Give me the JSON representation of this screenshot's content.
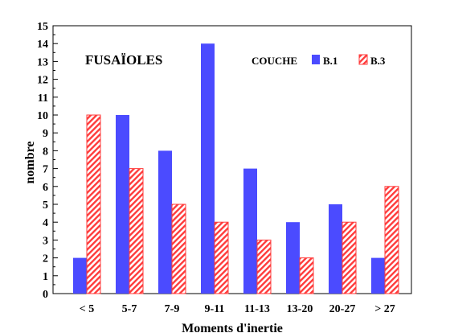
{
  "chart_data": {
    "type": "bar",
    "title": "FUSAÏOLES",
    "xlabel": "Moments d'inertie",
    "ylabel": "nombre",
    "ylim": [
      0,
      15
    ],
    "y_ticks": [
      0,
      1,
      2,
      3,
      4,
      5,
      6,
      7,
      8,
      9,
      10,
      11,
      12,
      13,
      14,
      15
    ],
    "grid": false,
    "legend_position": "top-right",
    "legend_title": "COUCHE",
    "categories": [
      "< 5",
      "5-7",
      "7-9",
      "9-11",
      "11-13",
      "13-20",
      "20-27",
      "> 27"
    ],
    "series": [
      {
        "name": "B.1",
        "values": [
          2,
          10,
          8,
          14,
          7,
          4,
          5,
          2
        ],
        "color": "#4b4bff",
        "pattern": "solid"
      },
      {
        "name": "B.3",
        "values": [
          10,
          7,
          5,
          4,
          3,
          2,
          4,
          6
        ],
        "color": "#ff3b3b",
        "pattern": "diagonal-hatch"
      }
    ]
  }
}
